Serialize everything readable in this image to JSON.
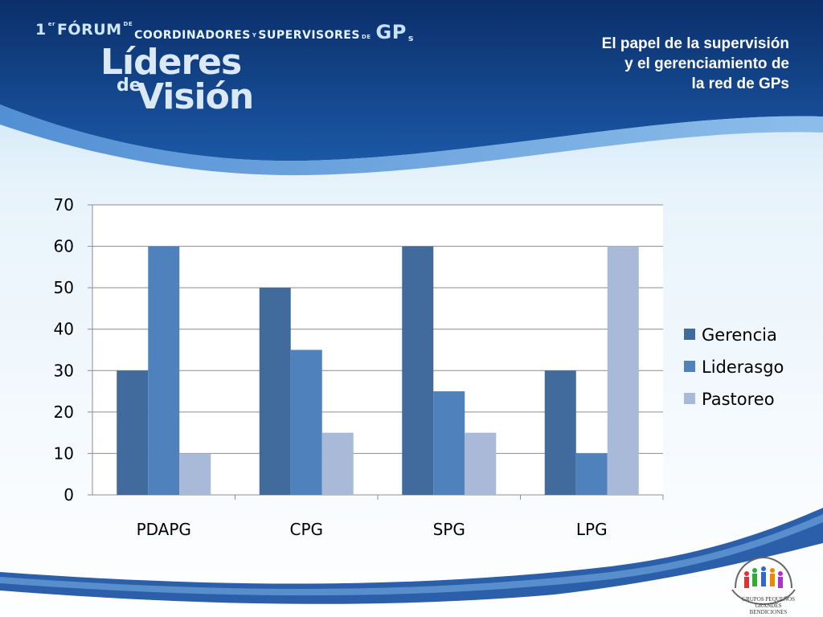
{
  "header": {
    "forum_number": "1",
    "forum_ordinal": "er",
    "forum_word": "FÓRUM",
    "forum_de": "DE",
    "forum_line": "COORDINADORES",
    "forum_y": "Y",
    "forum_line2": "SUPERVISORES",
    "forum_de2": "DE",
    "forum_gp": "GP",
    "forum_gp_s": "s",
    "brand_lideres": "Líderes",
    "brand_de": "de",
    "brand_vision": "Visión",
    "subtitle_lines": [
      "El papel de la supervisión",
      "y el gerenciamiento de",
      "la red de GPs"
    ]
  },
  "colors": {
    "header_dark": "#0f3f84",
    "header_band": "#1f5fae",
    "gerencia": "#416b9c",
    "liderasgo": "#4f81bd",
    "pastoreo": "#a9bad8"
  },
  "chart_data": {
    "type": "bar",
    "categories": [
      "PDAPG",
      "CPG",
      "SPG",
      "LPG"
    ],
    "series": [
      {
        "name": "Gerencia",
        "values": [
          30,
          50,
          60,
          30
        ]
      },
      {
        "name": "Liderasgo",
        "values": [
          60,
          35,
          25,
          10
        ]
      },
      {
        "name": "Pastoreo",
        "values": [
          10,
          15,
          15,
          60
        ]
      }
    ],
    "ylim": [
      0,
      70
    ],
    "yticks": [
      "0",
      "10",
      "20",
      "30",
      "40",
      "50",
      "60",
      "70"
    ],
    "grid": true,
    "legend_position": "right"
  },
  "logo": {
    "text_line1": "GRUPOS PEQUEÑOS",
    "text_line2": "GRANDES BENDICIONES",
    "icon": "people-group-hands-icon"
  }
}
